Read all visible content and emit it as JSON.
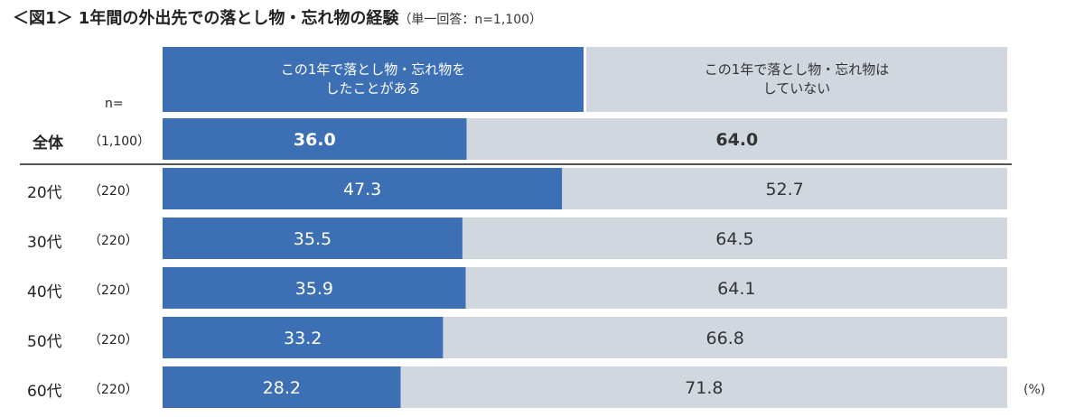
{
  "title": "＜図1＞ 1年間の外出先での落とし物・忘れ物の経験",
  "subtitle": "（単一回答：n=1,100）",
  "n_header": "n=",
  "unit": "(%)",
  "colors": {
    "did": "#3d6fb5",
    "not": "#d0d7df"
  },
  "chart_data": {
    "type": "bar",
    "orientation": "horizontal",
    "stacked": true,
    "percent": true,
    "title": "＜図1＞ 1年間の外出先での落とし物・忘れ物の経験",
    "subtitle": "（単一回答：n=1,100）",
    "ylim": [
      0,
      100
    ],
    "categories": [
      "全体",
      "20代",
      "30代",
      "40代",
      "50代",
      "60代"
    ],
    "n": [
      "（1,100）",
      "（220）",
      "（220）",
      "（220）",
      "（220）",
      "（220）"
    ],
    "series": [
      {
        "name": "この1年で落とし物・忘れ物を\nしたことがある",
        "values": [
          36.0,
          47.3,
          35.5,
          35.9,
          33.2,
          28.2
        ]
      },
      {
        "name": "この1年で落とし物・忘れ物は\nしていない",
        "values": [
          64.0,
          52.7,
          64.5,
          64.1,
          66.8,
          71.8
        ]
      }
    ]
  }
}
